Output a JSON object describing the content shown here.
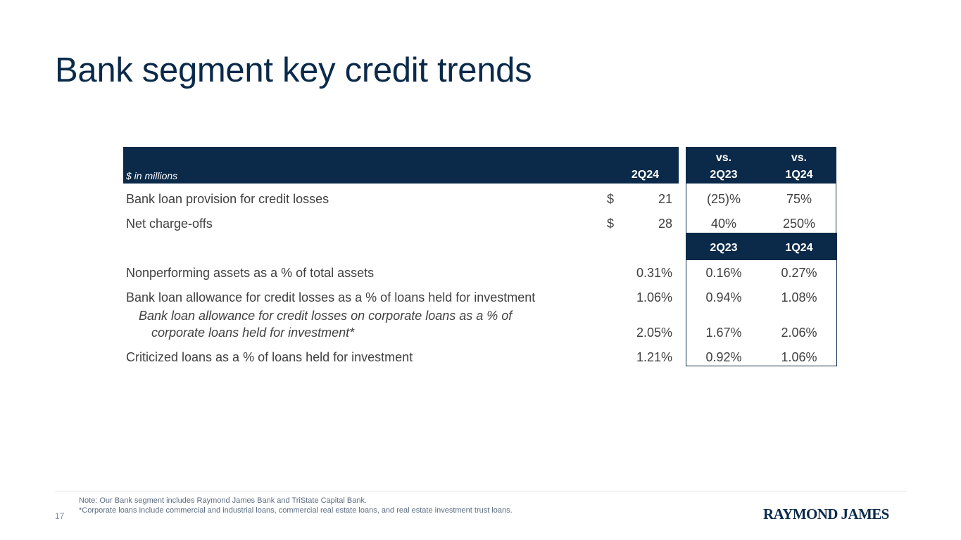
{
  "title": "Bank segment key credit trends",
  "table": {
    "units": "$ in millions",
    "header": {
      "col1": "2Q24",
      "col2_top": "vs.",
      "col2": "2Q23",
      "col3_top": "vs.",
      "col3": "1Q24"
    },
    "rows_top": [
      {
        "label": "Bank loan provision for credit losses",
        "currency": "$",
        "value": "21",
        "vs_prior_year": "(25)%",
        "vs_prior_quarter": "75%"
      },
      {
        "label": "Net charge-offs",
        "currency": "$",
        "value": "28",
        "vs_prior_year": "40%",
        "vs_prior_quarter": "250%"
      }
    ],
    "subheader": {
      "col2": "2Q23",
      "col3": "1Q24"
    },
    "rows_bottom": [
      {
        "label": "Nonperforming assets as a % of total assets",
        "v1": "0.31%",
        "v2": "0.16%",
        "v3": "0.27%"
      },
      {
        "label": "Bank loan allowance for credit losses as a % of loans held for investment",
        "v1": "1.06%",
        "v2": "0.94%",
        "v3": "1.08%"
      },
      {
        "label_line1": "Bank loan allowance for credit losses on corporate loans as a % of",
        "label_line2": "corporate loans held for investment*",
        "v1": "2.05%",
        "v2": "1.67%",
        "v3": "2.06%"
      },
      {
        "label": "Criticized loans as a % of loans held for investment",
        "v1": "1.21%",
        "v2": "0.92%",
        "v3": "1.06%"
      }
    ]
  },
  "footer": {
    "note1": "Note: Our Bank segment includes Raymond James Bank and TriState Capital Bank.",
    "note2": "*Corporate loans include commercial and industrial loans, commercial real estate loans, and real estate investment trust loans.",
    "page_number": "17",
    "logo": "RAYMOND JAMES"
  }
}
